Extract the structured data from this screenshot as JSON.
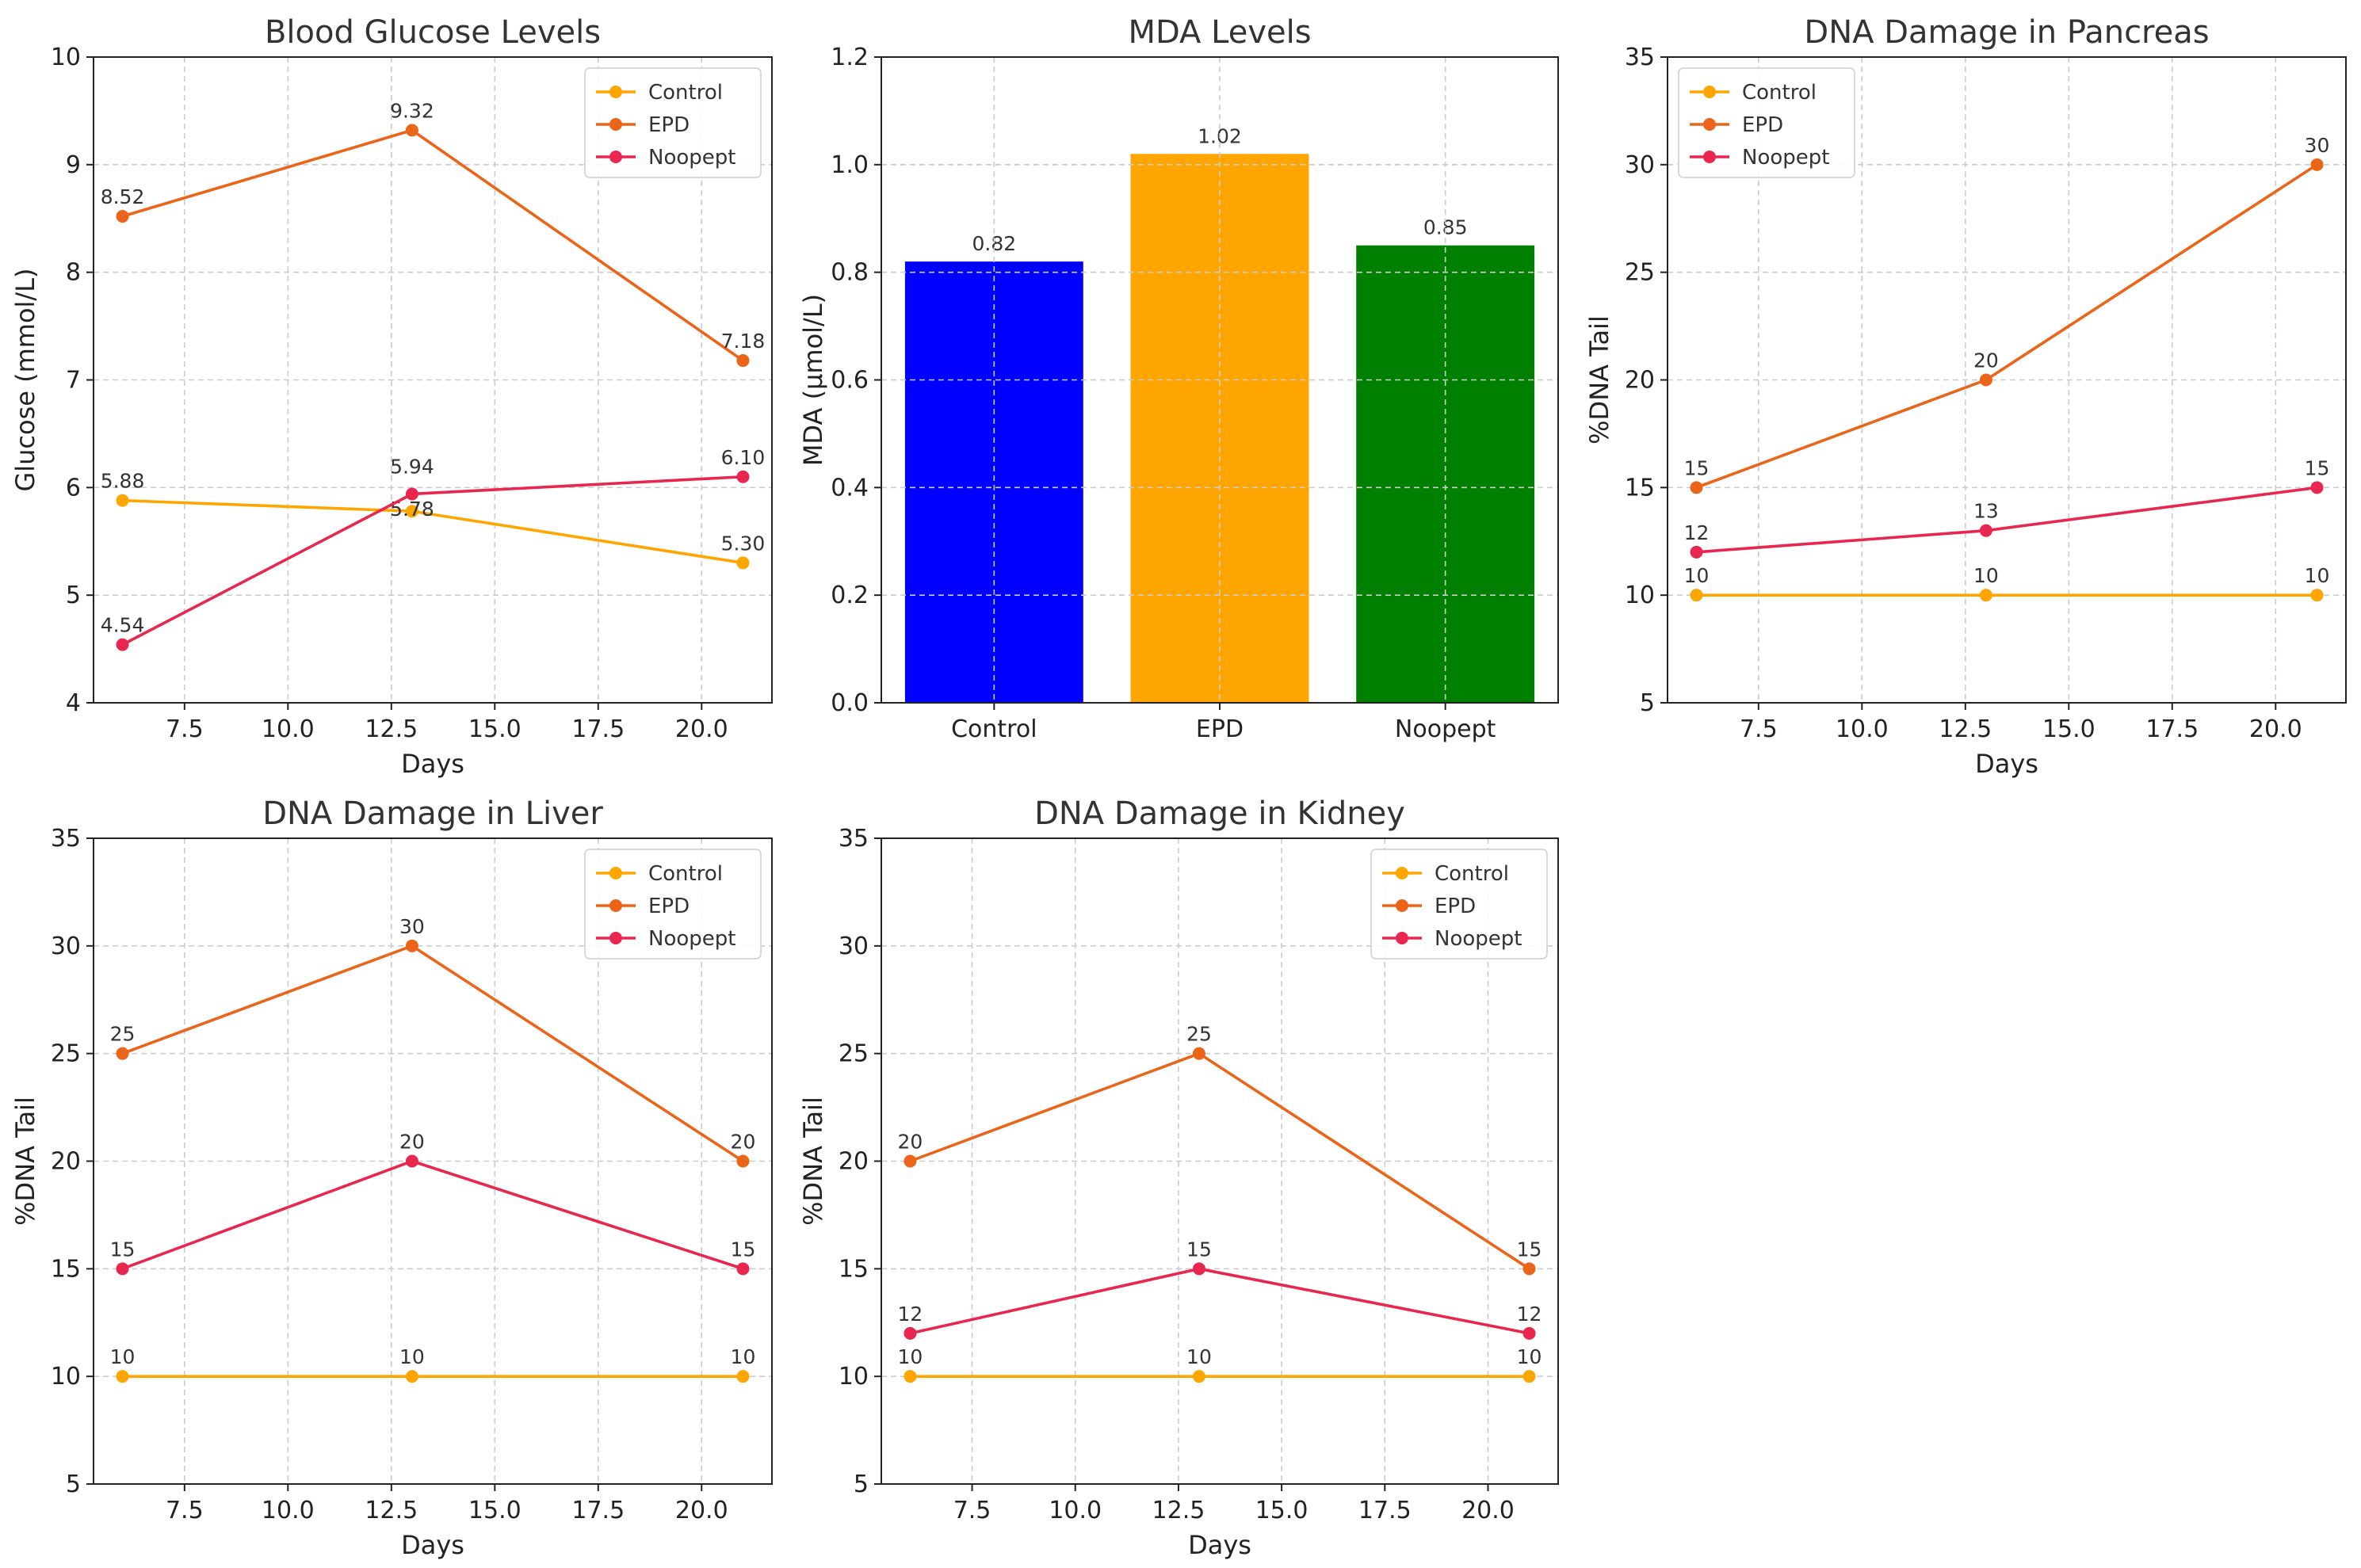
{
  "colors": {
    "control": "#FFA500",
    "epd": "#EC6418",
    "noopept": "#E8264E"
  },
  "chart_data": [
    {
      "type": "line",
      "title": "Blood Glucose Levels",
      "xlabel": "Days",
      "ylabel": "Glucose (mmol/L)",
      "x": [
        6,
        13,
        21
      ],
      "xlim": [
        5.3,
        21.7
      ],
      "ylim": [
        4,
        10
      ],
      "xticks": [
        7.5,
        10.0,
        12.5,
        15.0,
        17.5,
        20.0
      ],
      "xtick_labels": [
        "7.5",
        "10.0",
        "12.5",
        "15.0",
        "17.5",
        "20.0"
      ],
      "yticks": [
        4,
        5,
        6,
        7,
        8,
        9,
        10
      ],
      "ytick_labels": [
        "4",
        "5",
        "6",
        "7",
        "8",
        "9",
        "10"
      ],
      "legend": "top-right",
      "series": [
        {
          "name": "Control",
          "color": "#FFA500",
          "values": [
            5.88,
            5.78,
            5.3
          ],
          "labels": [
            "5.88",
            "5.78",
            "5.30"
          ]
        },
        {
          "name": "EPD",
          "color": "#EC6418",
          "values": [
            8.52,
            9.32,
            7.18
          ],
          "labels": [
            "8.52",
            "9.32",
            "7.18"
          ]
        },
        {
          "name": "Noopept",
          "color": "#E8264E",
          "values": [
            4.54,
            5.94,
            6.1
          ],
          "labels": [
            "4.54",
            "5.94",
            "6.10"
          ]
        }
      ]
    },
    {
      "type": "bar",
      "title": "MDA Levels",
      "xlabel": "",
      "ylabel": "MDA (µmol/L)",
      "categories": [
        "Control",
        "EPD",
        "Noopept"
      ],
      "values": [
        0.82,
        1.02,
        0.85
      ],
      "value_labels": [
        "0.82",
        "1.02",
        "0.85"
      ],
      "bar_colors": [
        "#0000FF",
        "#FFA500",
        "#008000"
      ],
      "ylim": [
        0,
        1.2
      ],
      "yticks": [
        0,
        0.2,
        0.4,
        0.6,
        0.8,
        1.0,
        1.2
      ],
      "ytick_labels": [
        "0.0",
        "0.2",
        "0.4",
        "0.6",
        "0.8",
        "1.0",
        "1.2"
      ]
    },
    {
      "type": "line",
      "title": "DNA Damage in Pancreas",
      "xlabel": "Days",
      "ylabel": "%DNA Tail",
      "x": [
        6,
        13,
        21
      ],
      "xlim": [
        5.3,
        21.7
      ],
      "ylim": [
        5,
        35
      ],
      "xticks": [
        7.5,
        10.0,
        12.5,
        15.0,
        17.5,
        20.0
      ],
      "xtick_labels": [
        "7.5",
        "10.0",
        "12.5",
        "15.0",
        "17.5",
        "20.0"
      ],
      "yticks": [
        5,
        10,
        15,
        20,
        25,
        30,
        35
      ],
      "ytick_labels": [
        "5",
        "10",
        "15",
        "20",
        "25",
        "30",
        "35"
      ],
      "legend": "top-left",
      "series": [
        {
          "name": "Control",
          "color": "#FFA500",
          "values": [
            10,
            10,
            10
          ],
          "labels": [
            "10",
            "10",
            "10"
          ]
        },
        {
          "name": "EPD",
          "color": "#EC6418",
          "values": [
            15,
            20,
            30
          ],
          "labels": [
            "15",
            "20",
            "30"
          ]
        },
        {
          "name": "Noopept",
          "color": "#E8264E",
          "values": [
            12,
            13,
            15
          ],
          "labels": [
            "12",
            "13",
            "15"
          ]
        }
      ]
    },
    {
      "type": "line",
      "title": "DNA Damage in Liver",
      "xlabel": "Days",
      "ylabel": "%DNA Tail",
      "x": [
        6,
        13,
        21
      ],
      "xlim": [
        5.3,
        21.7
      ],
      "ylim": [
        5,
        35
      ],
      "xticks": [
        7.5,
        10.0,
        12.5,
        15.0,
        17.5,
        20.0
      ],
      "xtick_labels": [
        "7.5",
        "10.0",
        "12.5",
        "15.0",
        "17.5",
        "20.0"
      ],
      "yticks": [
        5,
        10,
        15,
        20,
        25,
        30,
        35
      ],
      "ytick_labels": [
        "5",
        "10",
        "15",
        "20",
        "25",
        "30",
        "35"
      ],
      "legend": "top-right",
      "series": [
        {
          "name": "Control",
          "color": "#FFA500",
          "values": [
            10,
            10,
            10
          ],
          "labels": [
            "10",
            "10",
            "10"
          ]
        },
        {
          "name": "EPD",
          "color": "#EC6418",
          "values": [
            25,
            30,
            20
          ],
          "labels": [
            "25",
            "30",
            "20"
          ]
        },
        {
          "name": "Noopept",
          "color": "#E8264E",
          "values": [
            15,
            20,
            15
          ],
          "labels": [
            "15",
            "20",
            "15"
          ]
        }
      ]
    },
    {
      "type": "line",
      "title": "DNA Damage in Kidney",
      "xlabel": "Days",
      "ylabel": "%DNA Tail",
      "x": [
        6,
        13,
        21
      ],
      "xlim": [
        5.3,
        21.7
      ],
      "ylim": [
        5,
        35
      ],
      "xticks": [
        7.5,
        10.0,
        12.5,
        15.0,
        17.5,
        20.0
      ],
      "xtick_labels": [
        "7.5",
        "10.0",
        "12.5",
        "15.0",
        "17.5",
        "20.0"
      ],
      "yticks": [
        5,
        10,
        15,
        20,
        25,
        30,
        35
      ],
      "ytick_labels": [
        "5",
        "10",
        "15",
        "20",
        "25",
        "30",
        "35"
      ],
      "legend": "top-right",
      "series": [
        {
          "name": "Control",
          "color": "#FFA500",
          "values": [
            10,
            10,
            10
          ],
          "labels": [
            "10",
            "10",
            "10"
          ]
        },
        {
          "name": "EPD",
          "color": "#EC6418",
          "values": [
            20,
            25,
            15
          ],
          "labels": [
            "20",
            "25",
            "15"
          ]
        },
        {
          "name": "Noopept",
          "color": "#E8264E",
          "values": [
            12,
            15,
            12
          ],
          "labels": [
            "12",
            "15",
            "12"
          ]
        }
      ]
    }
  ]
}
